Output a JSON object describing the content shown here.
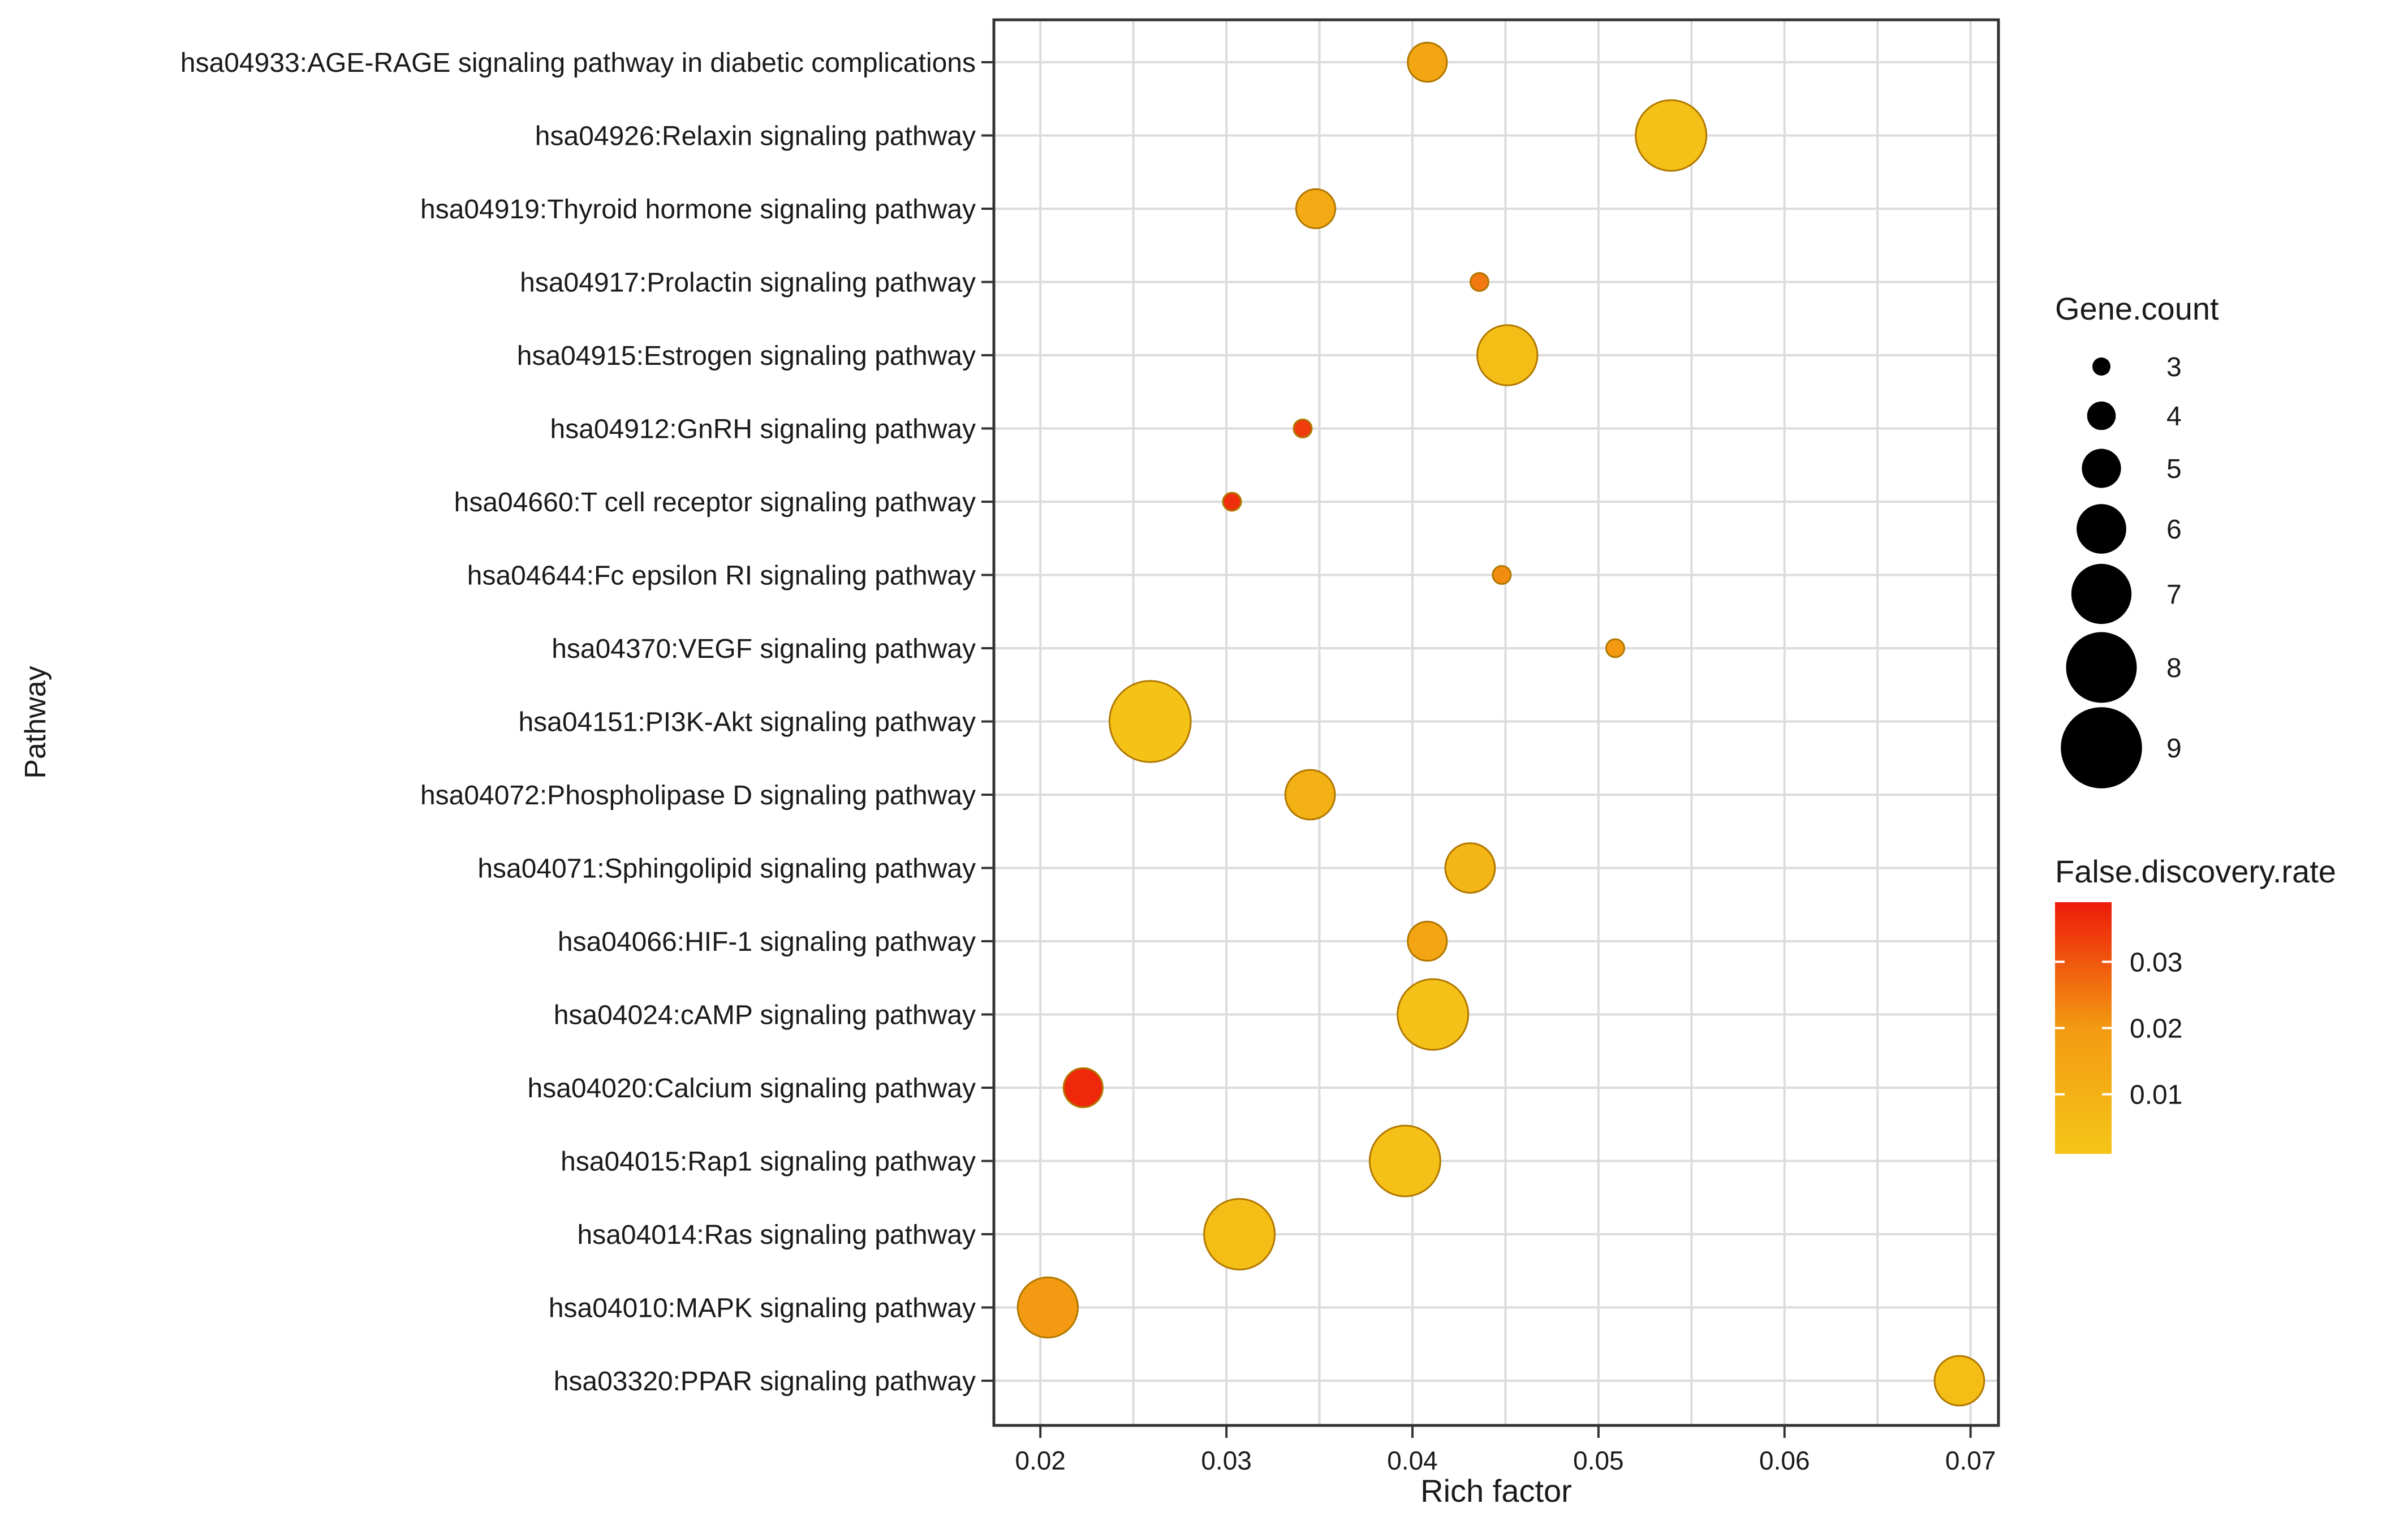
{
  "chart_data": {
    "type": "scatter",
    "xlabel": "Rich factor",
    "ylabel": "Pathway",
    "xlim": [
      0.0175,
      0.0715
    ],
    "x_ticks": [
      0.02,
      0.03,
      0.04,
      0.05,
      0.06,
      0.07
    ],
    "x_tick_labels": [
      "0.02",
      "0.03",
      "0.04",
      "0.05",
      "0.06",
      "0.07"
    ],
    "grid": true,
    "points": [
      {
        "pathway": "hsa04933:AGE-RAGE signaling pathway in diabetic complications",
        "rich_factor": 0.0408,
        "gene_count": 5,
        "fdr": 0.015
      },
      {
        "pathway": "hsa04926:Relaxin signaling pathway",
        "rich_factor": 0.0539,
        "gene_count": 8,
        "fdr": 0.003
      },
      {
        "pathway": "hsa04919:Thyroid hormone signaling pathway",
        "rich_factor": 0.0348,
        "gene_count": 5,
        "fdr": 0.013
      },
      {
        "pathway": "hsa04917:Prolactin signaling pathway",
        "rich_factor": 0.0436,
        "gene_count": 3,
        "fdr": 0.025
      },
      {
        "pathway": "hsa04915:Estrogen signaling pathway",
        "rich_factor": 0.0451,
        "gene_count": 7,
        "fdr": 0.004
      },
      {
        "pathway": "hsa04912:GnRH signaling pathway",
        "rich_factor": 0.0341,
        "gene_count": 3,
        "fdr": 0.034
      },
      {
        "pathway": "hsa04660:T cell receptor signaling pathway",
        "rich_factor": 0.0303,
        "gene_count": 3,
        "fdr": 0.036
      },
      {
        "pathway": "hsa04644:Fc epsilon RI signaling pathway",
        "rich_factor": 0.0448,
        "gene_count": 3,
        "fdr": 0.022
      },
      {
        "pathway": "hsa04370:VEGF signaling pathway",
        "rich_factor": 0.0509,
        "gene_count": 3,
        "fdr": 0.02
      },
      {
        "pathway": "hsa04151:PI3K-Akt signaling pathway",
        "rich_factor": 0.0259,
        "gene_count": 9,
        "fdr": 0.002
      },
      {
        "pathway": "hsa04072:Phospholipase D signaling pathway",
        "rich_factor": 0.0345,
        "gene_count": 6,
        "fdr": 0.01
      },
      {
        "pathway": "hsa04071:Sphingolipid signaling pathway",
        "rich_factor": 0.0431,
        "gene_count": 6,
        "fdr": 0.008
      },
      {
        "pathway": "hsa04066:HIF-1 signaling pathway",
        "rich_factor": 0.0408,
        "gene_count": 5,
        "fdr": 0.015
      },
      {
        "pathway": "hsa04024:cAMP signaling pathway",
        "rich_factor": 0.0411,
        "gene_count": 8,
        "fdr": 0.003
      },
      {
        "pathway": "hsa04020:Calcium signaling pathway",
        "rich_factor": 0.0223,
        "gene_count": 5,
        "fdr": 0.037
      },
      {
        "pathway": "hsa04015:Rap1 signaling pathway",
        "rich_factor": 0.0396,
        "gene_count": 8,
        "fdr": 0.003
      },
      {
        "pathway": "hsa04014:Ras signaling pathway",
        "rich_factor": 0.0307,
        "gene_count": 8,
        "fdr": 0.004
      },
      {
        "pathway": "hsa04010:MAPK signaling pathway",
        "rich_factor": 0.0204,
        "gene_count": 7,
        "fdr": 0.02
      },
      {
        "pathway": "hsa03320:PPAR signaling pathway",
        "rich_factor": 0.0694,
        "gene_count": 6,
        "fdr": 0.004
      }
    ],
    "legend_size": {
      "title": "Gene.count",
      "labels": [
        "3",
        "4",
        "5",
        "6",
        "7",
        "8",
        "9"
      ],
      "values": [
        3,
        4,
        5,
        6,
        7,
        8,
        9
      ]
    },
    "legend_color": {
      "title": "False.discovery.rate",
      "ticks": [
        0.03,
        0.02,
        0.01
      ],
      "tick_labels": [
        "0.03",
        "0.02",
        "0.01"
      ],
      "range": [
        0.001,
        0.039
      ],
      "low_color": "#f5c518",
      "mid_color": "#f39a12",
      "high_color": "#ee1a0a"
    },
    "colors": {
      "grid": "#dcdcdc",
      "axis": "#333333",
      "text": "#1a1a1a",
      "marker_edge": "#b07800",
      "size_marker": "#000000"
    }
  }
}
